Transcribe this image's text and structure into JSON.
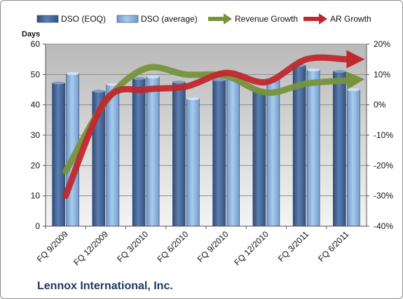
{
  "chart_data": {
    "type": "bar",
    "title": "",
    "categories": [
      "FQ 9/2009",
      "FQ 12/2009",
      "FQ 3/2010",
      "FQ 6/2010",
      "FQ 9/2010",
      "FQ 12/2010",
      "FQ 3/2011",
      "FQ 6/2011"
    ],
    "series": [
      {
        "name": "DSO (EOQ)",
        "type": "bar",
        "axis": "left",
        "color": "#4f6fa0",
        "values": [
          47.2,
          44.5,
          48.7,
          47.5,
          48.2,
          45.0,
          53.0,
          51.0
        ]
      },
      {
        "name": "DSO (average)",
        "type": "bar",
        "axis": "left",
        "color": "#8fb6e0",
        "values": [
          50.3,
          46.7,
          49.2,
          42.0,
          48.8,
          48.5,
          51.5,
          45.0
        ]
      },
      {
        "name": "Revenue Growth",
        "type": "line-arrow",
        "axis": "right",
        "color": "#77933c",
        "values": [
          -22,
          1,
          12,
          10,
          9.5,
          4,
          7,
          8
        ]
      },
      {
        "name": "AR Growth",
        "type": "line-arrow",
        "axis": "right",
        "color": "#c0282d",
        "values": [
          -30,
          1.5,
          5,
          6,
          10.5,
          7.5,
          15,
          15
        ]
      }
    ],
    "ylabel": "Days",
    "ylim": [
      0,
      60
    ],
    "yticks": [
      "0",
      "10",
      "20",
      "30",
      "40",
      "50",
      "60"
    ],
    "y2lim": [
      -40,
      20
    ],
    "y2ticks": [
      "-40%",
      "-30%",
      "-20%",
      "-10%",
      "0%",
      "10%",
      "20%"
    ],
    "grid": true,
    "legend_position": "top",
    "caption": "Lennox International, Inc."
  }
}
